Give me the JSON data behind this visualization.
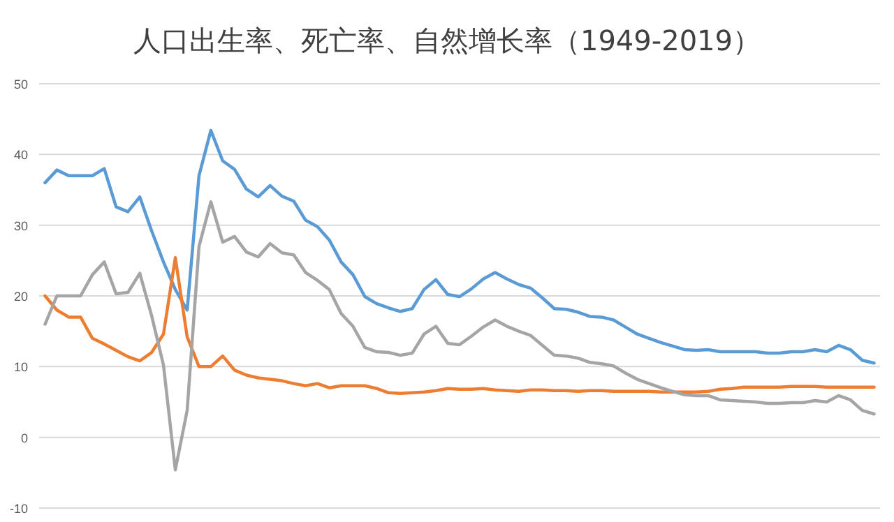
{
  "chart_data": {
    "type": "line",
    "title": "人口出生率、死亡率、自然增长率（1949-2019）",
    "categories": [
      null,
      null,
      null,
      null,
      null,
      null,
      null,
      null,
      null,
      null,
      null,
      null,
      null,
      null,
      null,
      null,
      null,
      null,
      null,
      null,
      null,
      null,
      null,
      null,
      null,
      null,
      null,
      null,
      null,
      null,
      null,
      null,
      null,
      null,
      null,
      null,
      null,
      null,
      null,
      null,
      null,
      null,
      null,
      null,
      null,
      null,
      null,
      null,
      null,
      null,
      null,
      null,
      null,
      null,
      null,
      null,
      null,
      null,
      null,
      null,
      null,
      null,
      null,
      null,
      null,
      null,
      null,
      null,
      null,
      null,
      null
    ],
    "series": [
      {
        "color": "#5b9bd5",
        "values": [
          36,
          37.8,
          37,
          37,
          37,
          38,
          32.6,
          31.9,
          34,
          29.2,
          24.8,
          20.9,
          18,
          37,
          43.4,
          39.1,
          37.9,
          35.1,
          34,
          35.6,
          34.1,
          33.4,
          30.7,
          29.8,
          27.9,
          24.8,
          23,
          19.9,
          18.9,
          18.3,
          17.8,
          18.2,
          20.9,
          22.3,
          20.2,
          19.9,
          21,
          22.4,
          23.3,
          22.4,
          21.6,
          21.1,
          19.7,
          18.2,
          18.1,
          17.7,
          17.1,
          17,
          16.6,
          15.6,
          14.6,
          14,
          13.4,
          12.9,
          12.4,
          12.3,
          12.4,
          12.1,
          12.1,
          12.1,
          12.1,
          11.9,
          11.9,
          12.1,
          12.1,
          12.4,
          12.1,
          13,
          12.4,
          10.9,
          10.5
        ]
      },
      {
        "color": "#ed7d31",
        "values": [
          20,
          18,
          17,
          17,
          14,
          13.2,
          12.3,
          11.4,
          10.8,
          12,
          14.6,
          25.4,
          14.2,
          10,
          10,
          11.5,
          9.5,
          8.8,
          8.4,
          8.2,
          8,
          7.6,
          7.3,
          7.6,
          7,
          7.3,
          7.3,
          7.3,
          6.9,
          6.3,
          6.2,
          6.3,
          6.4,
          6.6,
          6.9,
          6.8,
          6.8,
          6.9,
          6.7,
          6.6,
          6.5,
          6.7,
          6.7,
          6.6,
          6.6,
          6.5,
          6.6,
          6.6,
          6.5,
          6.5,
          6.5,
          6.5,
          6.4,
          6.4,
          6.4,
          6.4,
          6.5,
          6.8,
          6.9,
          7.1,
          7.1,
          7.1,
          7.1,
          7.2,
          7.2,
          7.2,
          7.1,
          7.1,
          7.1,
          7.1,
          7.1
        ]
      },
      {
        "color": "#a5a5a5",
        "values": [
          16,
          20,
          20,
          20,
          23,
          24.8,
          20.3,
          20.5,
          23.2,
          17.2,
          10.2,
          -4.6,
          3.8,
          27,
          33.3,
          27.6,
          28.4,
          26.2,
          25.5,
          27.4,
          26.1,
          25.8,
          23.3,
          22.2,
          20.9,
          17.5,
          15.7,
          12.7,
          12.1,
          12,
          11.6,
          11.9,
          14.6,
          15.7,
          13.3,
          13.1,
          14.3,
          15.6,
          16.6,
          15.7,
          15,
          14.4,
          13,
          11.6,
          11.5,
          11.2,
          10.6,
          10.4,
          10.1,
          9.1,
          8.2,
          7.6,
          7,
          6.5,
          6,
          5.9,
          5.9,
          5.3,
          5.2,
          5.1,
          5,
          4.8,
          4.8,
          4.9,
          4.9,
          5.2,
          5,
          5.9,
          5.3,
          3.8,
          3.3
        ]
      }
    ],
    "ylim": [
      -10,
      50
    ],
    "yticks": [
      -10,
      0,
      10,
      20,
      30,
      40,
      50
    ],
    "grid": "y",
    "tick_labels": "y"
  }
}
